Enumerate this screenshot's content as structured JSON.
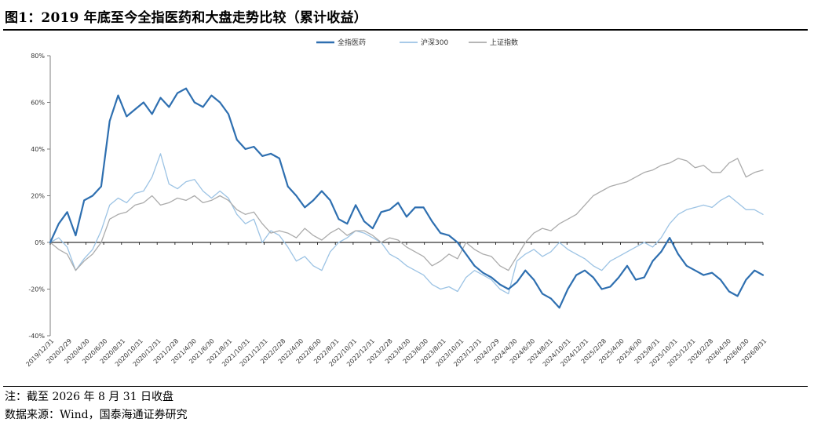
{
  "figure": {
    "title": "图1：2019 年底至今全指医药和大盘走势比较（累计收益）",
    "note": "注：截至 2026 年 8 月 31 日收盘",
    "source": "数据来源：Wind，国泰海通证券研究"
  },
  "chart_data": {
    "type": "line",
    "ylim": [
      -40,
      80
    ],
    "yticks": [
      "80%",
      "60%",
      "40%",
      "20%",
      "0%",
      "-20%",
      "-40%"
    ],
    "x_tick_labels": [
      "2019/12/31",
      "2020/2/29",
      "2020/4/30",
      "2020/6/30",
      "2020/8/31",
      "2020/10/31",
      "2020/12/31",
      "2021/2/28",
      "2021/4/30",
      "2021/6/30",
      "2021/8/31",
      "2021/10/31",
      "2021/12/31",
      "2022/2/28",
      "2022/4/30",
      "2022/6/30",
      "2022/8/31",
      "2022/10/31",
      "2022/12/31",
      "2023/2/28",
      "2023/4/30",
      "2023/6/30",
      "2023/8/31",
      "2023/10/31",
      "2023/12/31",
      "2024/2/29",
      "2024/4/30",
      "2024/6/30",
      "2024/8/31",
      "2024/10/31",
      "2024/12/31",
      "2025/2/28",
      "2025/4/30",
      "2025/6/30",
      "2025/8/31",
      "2025/10/31",
      "2025/12/31",
      "2026/2/28",
      "2026/4/30",
      "2026/6/30",
      "2026/8/31"
    ],
    "legend_position": "top-center",
    "grid": false,
    "series": [
      {
        "name": "全指医药",
        "color": "#2e6fb0",
        "values": [
          0,
          8,
          13,
          3,
          18,
          20,
          24,
          52,
          63,
          54,
          57,
          60,
          55,
          62,
          58,
          64,
          66,
          60,
          58,
          63,
          60,
          55,
          44,
          40,
          41,
          37,
          38,
          36,
          24,
          20,
          15,
          18,
          22,
          18,
          10,
          8,
          16,
          9,
          6,
          13,
          14,
          17,
          11,
          15,
          15,
          9,
          4,
          3,
          0,
          -5,
          -10,
          -13,
          -15,
          -18,
          -20,
          -17,
          -12,
          -16,
          -22,
          -24,
          -28,
          -20,
          -14,
          -12,
          -15,
          -20,
          -19,
          -15,
          -10,
          -16,
          -15,
          -8,
          -4,
          2,
          -5,
          -10,
          -12,
          -14,
          -13,
          -16,
          -21,
          -23,
          -16,
          -12,
          -14
        ],
        "stroke_width": 2.2
      },
      {
        "name": "沪深300",
        "color": "#9cc3e4",
        "values": [
          0,
          2,
          -2,
          -12,
          -7,
          -3,
          5,
          16,
          19,
          17,
          21,
          22,
          28,
          38,
          25,
          23,
          26,
          27,
          22,
          19,
          22,
          19,
          12,
          8,
          10,
          0,
          5,
          3,
          -2,
          -8,
          -6,
          -10,
          -12,
          -4,
          0,
          2,
          5,
          4,
          2,
          0,
          -5,
          -7,
          -10,
          -12,
          -14,
          -18,
          -20,
          -19,
          -21,
          -15,
          -12,
          -14,
          -16,
          -20,
          -22,
          -8,
          -5,
          -3,
          -6,
          -4,
          0,
          -3,
          -5,
          -7,
          -10,
          -12,
          -8,
          -6,
          -4,
          -2,
          0,
          -2,
          2,
          8,
          12,
          14,
          15,
          16,
          15,
          18,
          20,
          17,
          14,
          14,
          12
        ],
        "stroke_width": 1.3
      },
      {
        "name": "上证指数",
        "color": "#ababab",
        "values": [
          0,
          -3,
          -5,
          -12,
          -8,
          -5,
          0,
          10,
          12,
          13,
          16,
          17,
          20,
          16,
          17,
          19,
          18,
          20,
          17,
          18,
          20,
          18,
          14,
          12,
          13,
          8,
          4,
          5,
          4,
          2,
          6,
          3,
          1,
          4,
          6,
          3,
          5,
          5,
          3,
          0,
          2,
          1,
          -2,
          -4,
          -6,
          -10,
          -8,
          -5,
          -7,
          0,
          -3,
          -5,
          -6,
          -10,
          -12,
          -6,
          0,
          4,
          6,
          5,
          8,
          10,
          12,
          16,
          20,
          22,
          24,
          25,
          26,
          28,
          30,
          31,
          33,
          34,
          36,
          35,
          32,
          33,
          30,
          30,
          34,
          36,
          28,
          30,
          31
        ],
        "stroke_width": 1.3
      }
    ]
  }
}
